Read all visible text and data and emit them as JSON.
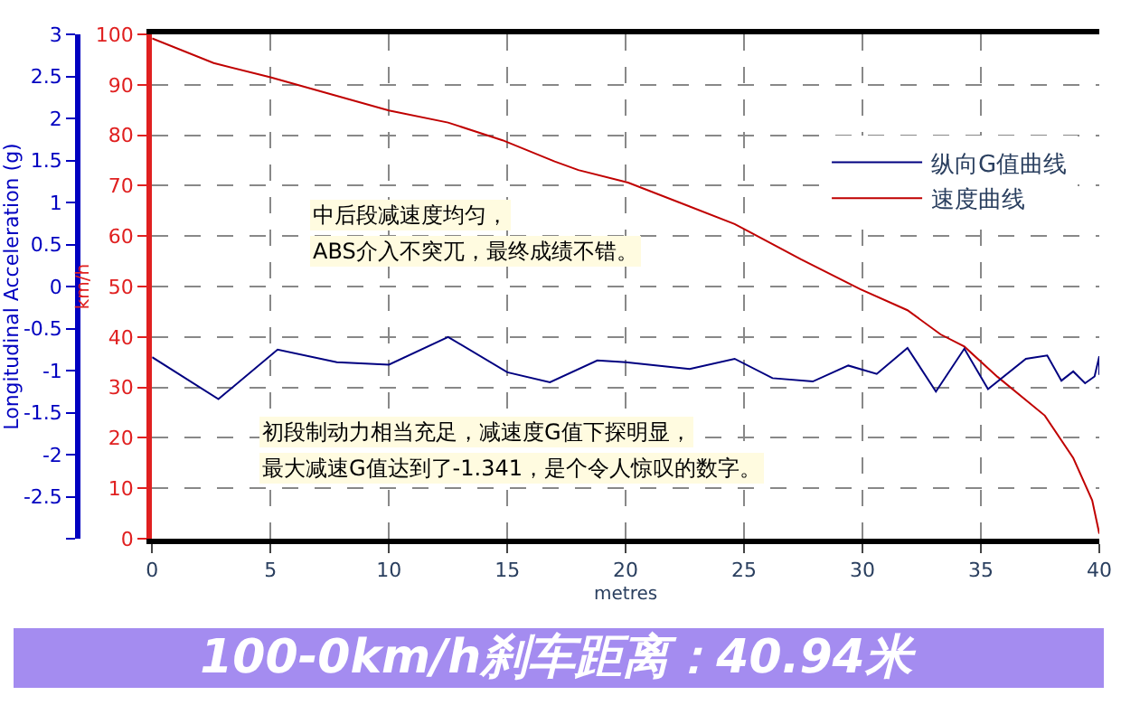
{
  "chart_data": {
    "type": "line",
    "xlabel": "metres",
    "ylabel": "km/h",
    "y2label": "Longitudinal Acceleration (g)",
    "xlim": [
      0,
      40
    ],
    "xticks": [
      0,
      5,
      10,
      15,
      20,
      25,
      30,
      35,
      40
    ],
    "ylim": [
      0,
      100
    ],
    "yticks": [
      0,
      10,
      20,
      30,
      40,
      50,
      60,
      70,
      80,
      90,
      100
    ],
    "y2lim": [
      -3,
      3
    ],
    "y2ticks": [
      {
        "value": -3,
        "label": null
      },
      -2.5,
      -2,
      -1.5,
      -1,
      -0.5,
      0,
      0.5,
      1,
      1.5,
      2,
      2.5,
      3
    ],
    "grid": true,
    "legend": "top right",
    "marker": "none",
    "line_style": "solid",
    "series": [
      {
        "name": "纵向G值曲线",
        "color": "#000080",
        "axis": "y2",
        "x": [
          0,
          2.8,
          5.3,
          7.8,
          10,
          12.5,
          15,
          16.8,
          18.8,
          20,
          22.7,
          24.6,
          26.2,
          27.9,
          29.4,
          30.6,
          31.9,
          33.1,
          34.3,
          35.3,
          36.9,
          37.8,
          38.4,
          38.9,
          39.4,
          39.8,
          40,
          40
        ],
        "values": [
          -0.84,
          -1.34,
          -0.75,
          -0.9,
          -0.93,
          -0.6,
          -1.02,
          -1.14,
          -0.88,
          -0.9,
          -0.98,
          -0.86,
          -1.09,
          -1.13,
          -0.94,
          -1.04,
          -0.73,
          -1.25,
          -0.74,
          -1.22,
          -0.86,
          -0.82,
          -1.12,
          -1.01,
          -1.15,
          -1.07,
          -0.83,
          -1.05
        ]
      },
      {
        "name": "速度曲线",
        "color": "#c00000",
        "x": [
          0,
          2.6,
          5,
          10,
          12.5,
          14.8,
          17,
          18,
          20.1,
          24.6,
          27.4,
          29.9,
          31.9,
          33.3,
          34.3,
          35.7,
          37.7,
          38.9,
          39.7,
          40
        ],
        "values": [
          99.2,
          94.3,
          91.5,
          84.9,
          82.5,
          79,
          74.8,
          73.1,
          70.6,
          62.4,
          55.4,
          49.5,
          45.3,
          40.5,
          38.1,
          32.1,
          24.4,
          16,
          7.6,
          1
        ]
      }
    ],
    "annotations": [
      "中后段减速度均匀，",
      "ABS介入不突兀，最终成绩不错。",
      "初段制动力相当充足，减速度G值下探明显，",
      "最大减速G值达到了-1.341，是个令人惊叹的数字。",
      "100-0km/h刹车距离：40.94米"
    ]
  }
}
